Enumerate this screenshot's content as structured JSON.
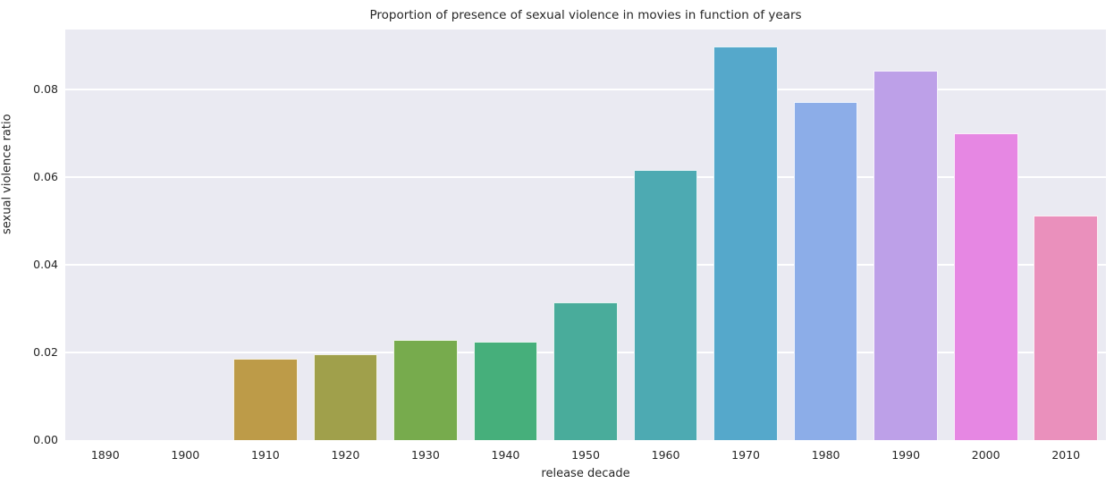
{
  "chart_data": {
    "type": "bar",
    "title": "Proportion of presence of sexual violence in movies in function of years",
    "xlabel": "release decade",
    "ylabel": "sexual violence ratio",
    "categories": [
      "1890",
      "1900",
      "1910",
      "1920",
      "1930",
      "1940",
      "1950",
      "1960",
      "1970",
      "1980",
      "1990",
      "2000",
      "2010"
    ],
    "values": [
      0,
      0,
      0.0186,
      0.0195,
      0.0228,
      0.0224,
      0.0314,
      0.0617,
      0.0899,
      0.0772,
      0.0843,
      0.0701,
      0.0513
    ],
    "bar_colors": [
      "#ed7f8e",
      "#d08c3b",
      "#bd9b48",
      "#a0a04b",
      "#77ab4d",
      "#46af7b",
      "#49ac9b",
      "#4daab2",
      "#55a8cb",
      "#8cade8",
      "#bda0e8",
      "#e687e3",
      "#ea90bc"
    ],
    "ylim": [
      0,
      0.0937
    ],
    "yticks": [
      0,
      0.02,
      0.04,
      0.06,
      0.08
    ],
    "ytick_labels": [
      "0.00",
      "0.02",
      "0.04",
      "0.06",
      "0.08"
    ],
    "grid": true,
    "legend": false,
    "plot_bg_color": "#eaeaf2",
    "grid_color": "#ffffff",
    "text_color": "#262626",
    "bar_rel_width": 0.8
  }
}
